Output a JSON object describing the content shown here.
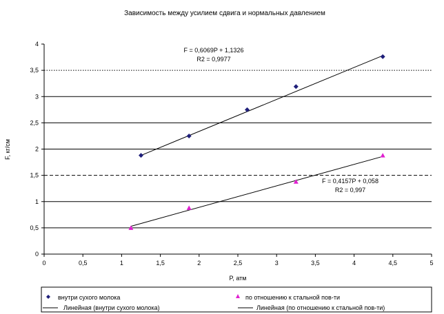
{
  "chart_data": {
    "type": "scatter",
    "title": "Зависимость между усилием сдвига и нормальных давлением",
    "xlabel": "P, атм",
    "ylabel": "F, кг/см",
    "xlim": [
      0,
      5
    ],
    "ylim": [
      0,
      4
    ],
    "x_ticks": [
      "0",
      "0,5",
      "1",
      "1,5",
      "2",
      "2,5",
      "3",
      "3,5",
      "4",
      "4,5",
      "5"
    ],
    "y_ticks": [
      "0",
      "0,5",
      "1",
      "1,5",
      "2",
      "2,5",
      "3",
      "3,5",
      "4"
    ],
    "grid": {
      "dotted": [
        3.5
      ],
      "solid": [
        3.0,
        2.5,
        2.0,
        1.0,
        0.5
      ],
      "dashed": [
        1.5
      ]
    },
    "legend_position": "bottom",
    "series": [
      {
        "name": "внутри сухого молока",
        "marker": "diamond",
        "color": "#1f1f7a",
        "points": [
          {
            "x": 1.25,
            "y": 1.88
          },
          {
            "x": 1.87,
            "y": 2.25
          },
          {
            "x": 2.62,
            "y": 2.75
          },
          {
            "x": 3.25,
            "y": 3.19
          },
          {
            "x": 4.37,
            "y": 3.76
          }
        ]
      },
      {
        "name": "по отношению к стальной пов-ти",
        "marker": "triangle",
        "color": "#e020d0",
        "points": [
          {
            "x": 1.12,
            "y": 0.5
          },
          {
            "x": 1.87,
            "y": 0.88
          },
          {
            "x": 3.25,
            "y": 1.38
          },
          {
            "x": 4.37,
            "y": 1.88
          }
        ]
      }
    ],
    "trendlines": [
      {
        "name": "Линейная (внутри сухого молока)",
        "color": "#000000",
        "x_range": [
          1.25,
          4.37
        ],
        "y_range": [
          1.88,
          3.78
        ],
        "equation": "F = 0,6069P + 1,1326",
        "r2": "R2 = 0,9977"
      },
      {
        "name": "Линейная (по отношению к стальной пов-ти)",
        "color": "#000000",
        "x_range": [
          1.12,
          4.37
        ],
        "y_range": [
          0.53,
          1.86
        ],
        "equation": "F = 0,4157P + 0,058",
        "r2": "R2 = 0,997"
      }
    ]
  }
}
